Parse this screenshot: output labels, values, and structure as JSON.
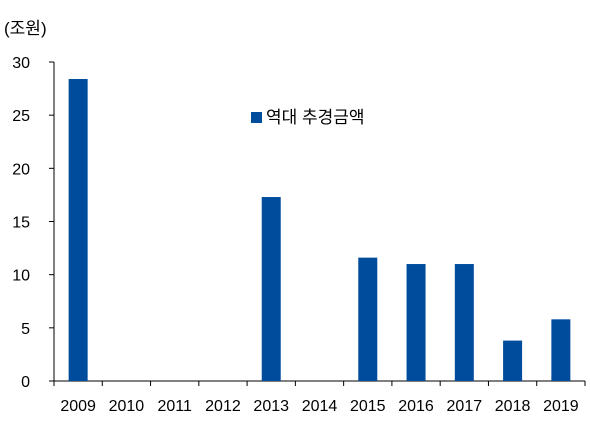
{
  "chart_data": {
    "type": "bar",
    "unit_label": "(조원)",
    "categories": [
      "2009",
      "2010",
      "2011",
      "2012",
      "2013",
      "2014",
      "2015",
      "2016",
      "2017",
      "2018",
      "2019"
    ],
    "series": [
      {
        "name": "역대 추경금액",
        "color": "#004c9c",
        "values": [
          28.4,
          0,
          0,
          0,
          17.3,
          0,
          11.6,
          11.0,
          11.0,
          3.8,
          5.8
        ]
      }
    ],
    "ylim": [
      0,
      30
    ],
    "yticks": [
      0,
      5,
      10,
      15,
      20,
      25,
      30
    ],
    "grid": false,
    "legend_position": "top-center"
  }
}
